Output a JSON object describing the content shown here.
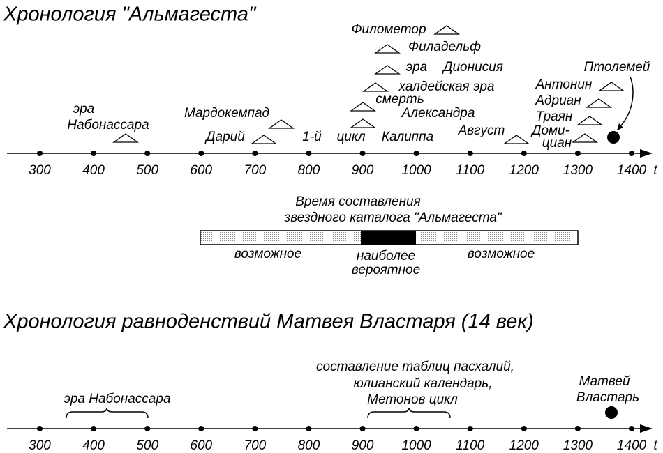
{
  "title1": "Хронология \"Альмагеста\"",
  "axis1": {
    "ticks": [
      300,
      400,
      500,
      600,
      700,
      800,
      900,
      1000,
      1100,
      1200,
      1300,
      1400
    ],
    "label": "t"
  },
  "events1": {
    "nabonassar": [
      "эра",
      "Набонассара"
    ],
    "mardokempad": "Мардокемпад",
    "darius": "Дарий",
    "callippus": [
      "1-й",
      "цикл",
      "Калиппа"
    ],
    "alexander": [
      "смерть",
      "Александра"
    ],
    "chaldean": "халдейская эра",
    "dionysius": [
      "эра",
      "Дионисия"
    ],
    "philadelphus": "Филадельф",
    "philometor": "Филометор",
    "augustus": "Август",
    "antoninus": "Антонин",
    "hadrian": "Адриан",
    "trajan": "Траян",
    "domitian": [
      "Доми-",
      "циан"
    ],
    "ptolemy": "Птолемей"
  },
  "catalog": {
    "title": [
      "Время составления",
      "звездного каталога \"Альмагеста\""
    ],
    "possible_left": "возможное",
    "most_probable": [
      "наиболее",
      "вероятное"
    ],
    "possible_right": "возможное"
  },
  "title2": "Хронология равноденствий Матвея Властаря (14 век)",
  "axis2": {
    "ticks": [
      300,
      400,
      500,
      600,
      700,
      800,
      900,
      1000,
      1100,
      1200,
      1300,
      1400
    ],
    "label": "t"
  },
  "events2": {
    "nabonassar": "эра Набонассара",
    "easter": [
      "составление таблиц пасхалий,",
      "юлианский календарь,",
      "Метонов цикл"
    ],
    "vlastar": [
      "Матвей",
      "Властарь"
    ]
  }
}
